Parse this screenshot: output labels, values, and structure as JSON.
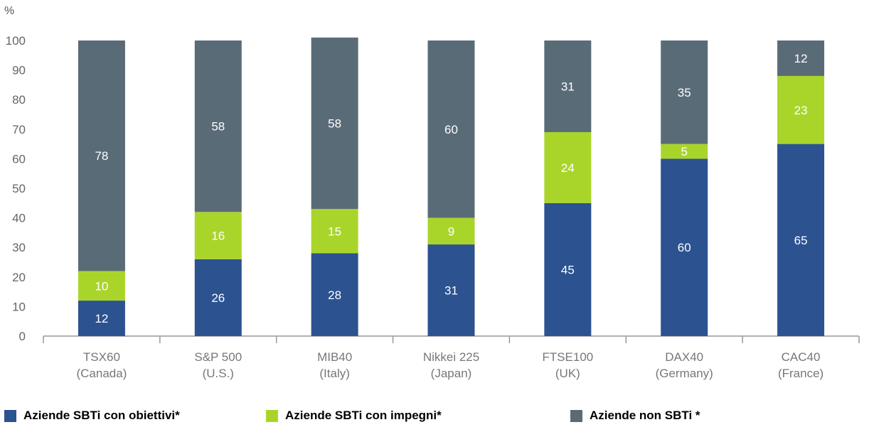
{
  "chart_data": {
    "type": "bar",
    "stacked": true,
    "ylabel": "%",
    "ylim": [
      0,
      100
    ],
    "yticks": [
      0,
      10,
      20,
      30,
      40,
      50,
      60,
      70,
      80,
      90,
      100
    ],
    "categories": [
      [
        "TSX60",
        "(Canada)"
      ],
      [
        "S&P 500",
        "(U.S.)"
      ],
      [
        "MIB40",
        "(Italy)"
      ],
      [
        "Nikkei 225",
        "(Japan)"
      ],
      [
        "FTSE100",
        "(UK)"
      ],
      [
        "DAX40",
        "(Germany)"
      ],
      [
        "CAC40",
        "(France)"
      ]
    ],
    "series": [
      {
        "name": "Aziende SBTi con obiettivi*",
        "color": "#2c5290",
        "values": [
          12,
          26,
          28,
          31,
          45,
          60,
          65
        ]
      },
      {
        "name": "Aziende SBTi con impegni*",
        "color": "#a9d52b",
        "values": [
          10,
          16,
          15,
          9,
          24,
          5,
          23
        ]
      },
      {
        "name": "Aziende non SBTi *",
        "color": "#5a6b78",
        "values": [
          78,
          58,
          58,
          60,
          31,
          35,
          12
        ]
      }
    ],
    "legend_position": "bottom"
  }
}
